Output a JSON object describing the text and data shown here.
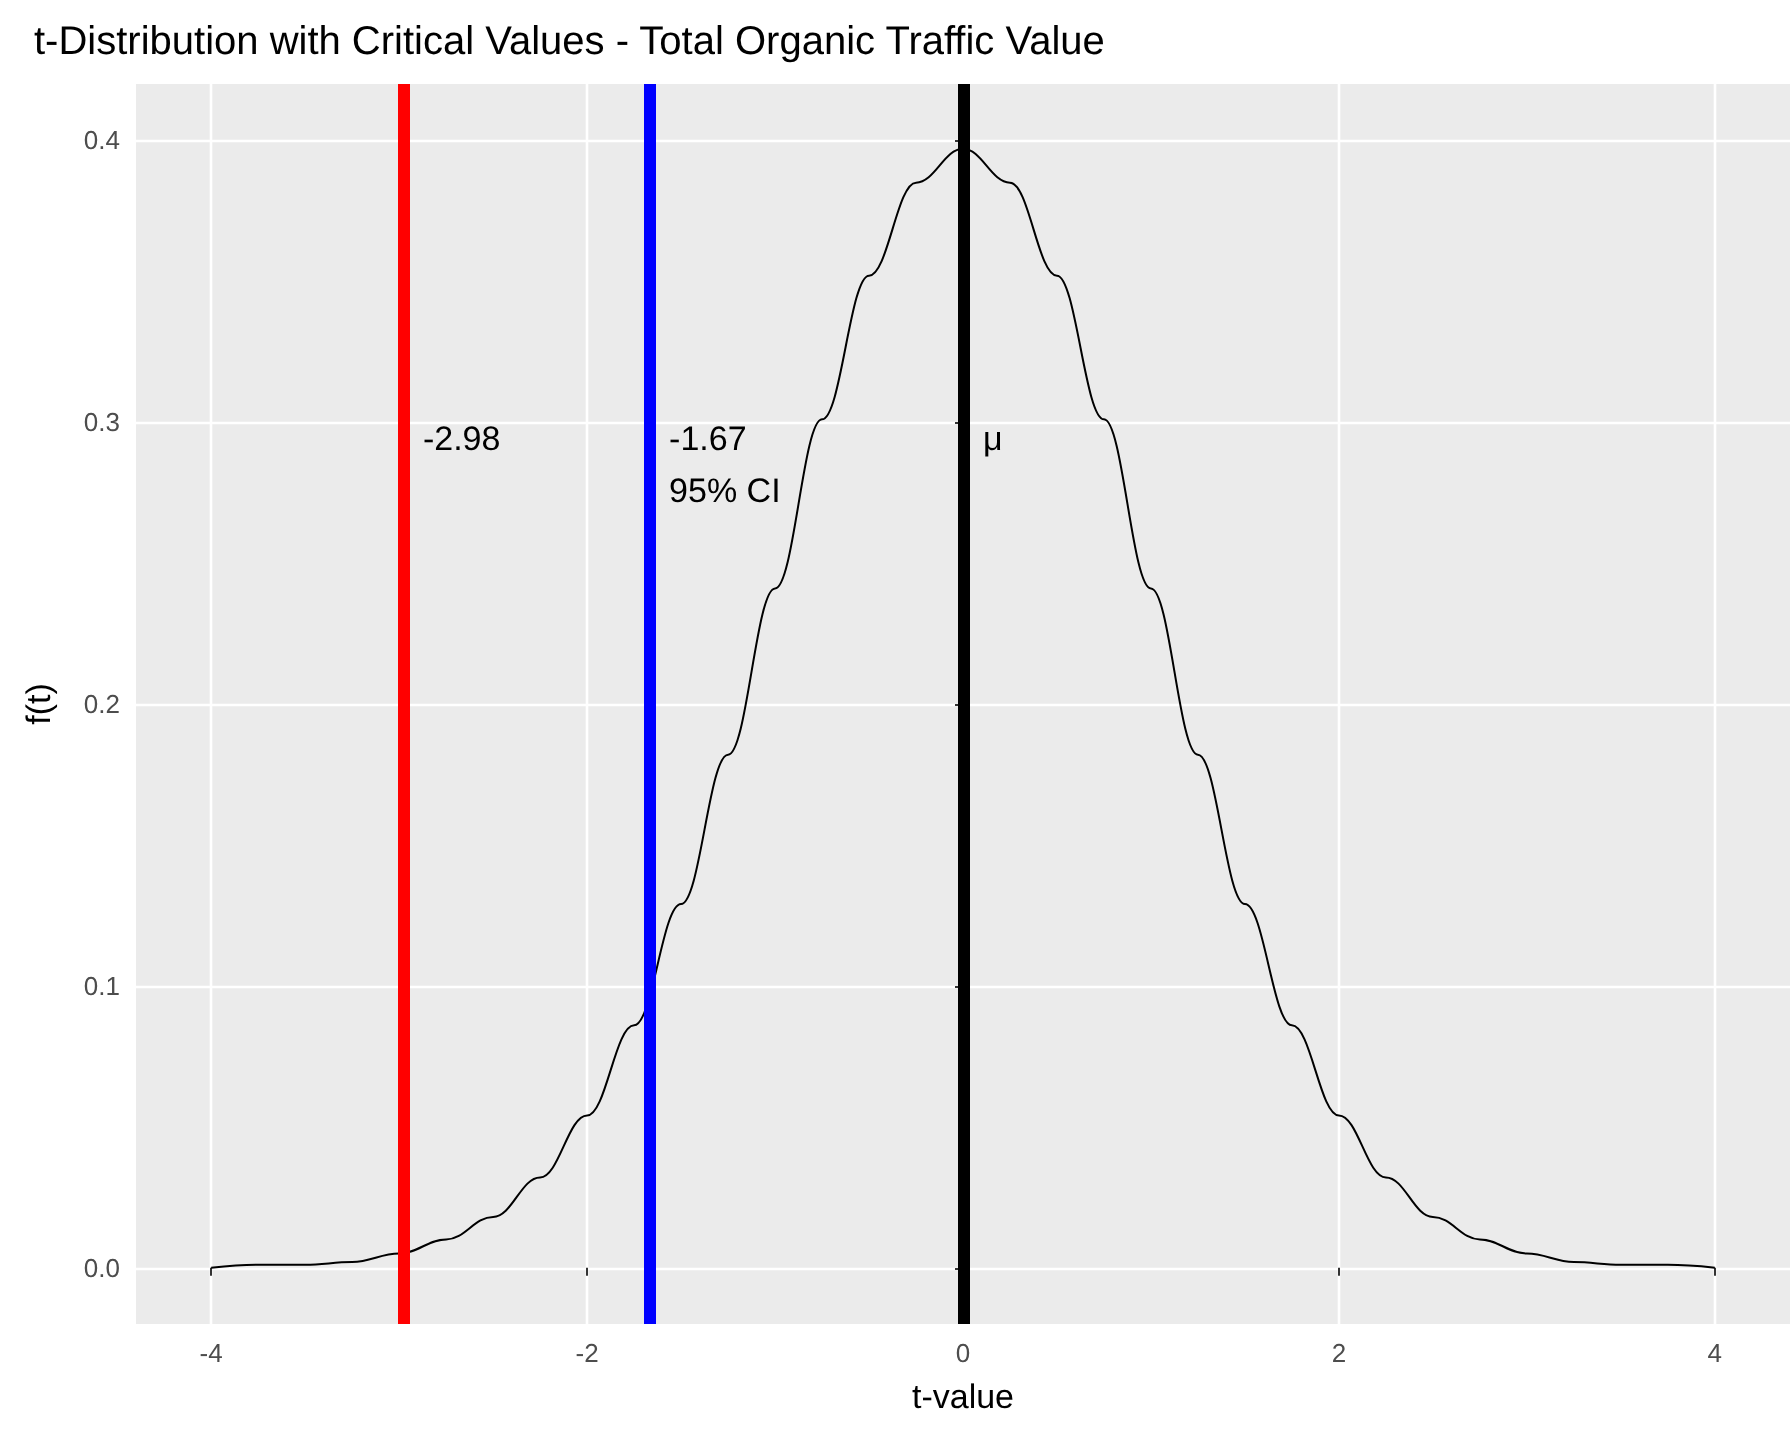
{
  "chart_data": {
    "type": "line",
    "title": "t-Distribution with Critical Values - Total Organic Traffic Value",
    "xlabel": "t-value",
    "ylabel": "f(t)",
    "series": [
      {
        "color": "#000000",
        "x": [
          -4,
          -3.75,
          -3.5,
          -3.25,
          -3,
          -2.75,
          -2.5,
          -2.25,
          -2,
          -1.75,
          -1.5,
          -1.25,
          -1,
          -0.75,
          -0.5,
          -0.25,
          0,
          0.25,
          0.5,
          0.75,
          1,
          1.25,
          1.5,
          1.75,
          2,
          2.25,
          2.5,
          2.75,
          3,
          3.25,
          3.5,
          3.75,
          4
        ],
        "values": [
          0.0,
          0.001,
          0.001,
          0.002,
          0.005,
          0.01,
          0.018,
          0.032,
          0.054,
          0.086,
          0.129,
          0.182,
          0.241,
          0.301,
          0.352,
          0.385,
          0.397,
          0.385,
          0.352,
          0.301,
          0.241,
          0.182,
          0.129,
          0.086,
          0.054,
          0.032,
          0.018,
          0.01,
          0.005,
          0.002,
          0.001,
          0.001,
          0.0
        ]
      }
    ],
    "xlim": [
      -4.4,
      4.4
    ],
    "xticks": [
      -4,
      -2,
      0,
      2,
      4
    ],
    "ylim": [
      -0.02,
      0.42
    ],
    "yticks": [
      {
        "value": 0,
        "label": "0.0"
      },
      0.1,
      0.2,
      0.3,
      0.4
    ],
    "ref_lines": [
      {
        "axis": "x",
        "value": -2.98,
        "label": "-2.98",
        "color": "#ff0000"
      },
      {
        "axis": "x",
        "value": -1.67,
        "label": "-1.67\n95% CI",
        "color": "#0000ff"
      },
      {
        "axis": "x",
        "value": 0,
        "label": "μ",
        "color": "#000000"
      }
    ],
    "grid": true,
    "marker": "none",
    "line_style": "solid"
  }
}
